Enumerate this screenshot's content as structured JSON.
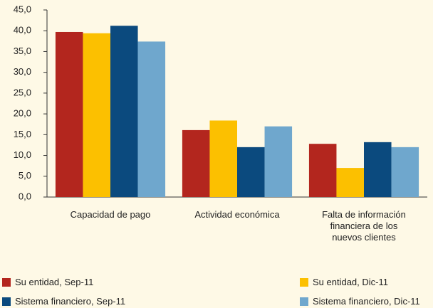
{
  "chart_data": {
    "type": "bar",
    "categories": [
      "Capacidad de pago",
      "Actividad económica",
      "Falta de información financiera de los nuevos clientes"
    ],
    "series": [
      {
        "name": "Su entidad, Sep-11",
        "color": "#b3261e",
        "values": [
          39.7,
          16.1,
          12.8
        ]
      },
      {
        "name": "Su entidad, Dic-11",
        "color": "#fcc000",
        "values": [
          39.4,
          18.4,
          7.0
        ]
      },
      {
        "name": "Sistema financiero, Sep-11",
        "color": "#0b4a7e",
        "values": [
          41.2,
          12.0,
          13.2
        ]
      },
      {
        "name": "Sistema financiero, Dic-11",
        "color": "#6fa7cd",
        "values": [
          37.4,
          17.0,
          12.0
        ]
      }
    ],
    "ylim": [
      0,
      45
    ],
    "yticks": [
      {
        "value": 0,
        "label": "0,0"
      },
      {
        "value": 5,
        "label": "5,0"
      },
      {
        "value": 10,
        "label": "10,0"
      },
      {
        "value": 15,
        "label": "15,0"
      },
      {
        "value": 20,
        "label": "20,0"
      },
      {
        "value": 25,
        "label": "25,0"
      },
      {
        "value": 30,
        "label": "30,0"
      },
      {
        "value": 35,
        "label": "35,0"
      },
      {
        "value": 40,
        "label": "40,0"
      },
      {
        "value": 45,
        "label": "45,0"
      }
    ],
    "legend": "bottom"
  }
}
